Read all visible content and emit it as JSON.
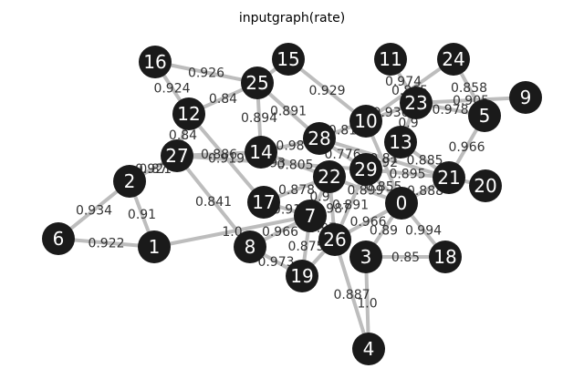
{
  "title": "inputgraph(rate)",
  "colors": {
    "node": "#1a1a1a",
    "node_text": "#ffffff",
    "edge": "#bdbdbd",
    "edge_label": "#333333"
  },
  "nodes": [
    "16",
    "25",
    "15",
    "11",
    "24",
    "12",
    "23",
    "9",
    "5",
    "10",
    "13",
    "27",
    "14",
    "28",
    "2",
    "29",
    "22",
    "21",
    "20",
    "17",
    "7",
    "0",
    "6",
    "1",
    "8",
    "26",
    "3",
    "18",
    "19",
    "4"
  ],
  "edges": [
    {
      "source": "16",
      "target": "25",
      "label": "0.926"
    },
    {
      "source": "16",
      "target": "12",
      "label": "0.924"
    },
    {
      "source": "25",
      "target": "12",
      "label": "0.84"
    },
    {
      "source": "25",
      "target": "28",
      "label": "0.891"
    },
    {
      "source": "25",
      "target": "15",
      "label": ""
    },
    {
      "source": "25",
      "target": "14",
      "label": "0.894"
    },
    {
      "source": "15",
      "target": "10",
      "label": "0.929"
    },
    {
      "source": "11",
      "target": "23",
      "label": "0.974"
    },
    {
      "source": "24",
      "target": "10",
      "label": "0.865"
    },
    {
      "source": "24",
      "target": "5",
      "label": "0.858"
    },
    {
      "source": "23",
      "target": "9",
      "label": "0.905"
    },
    {
      "source": "23",
      "target": "5",
      "label": "0.978"
    },
    {
      "source": "23",
      "target": "13",
      "label": "0.9"
    },
    {
      "source": "23",
      "target": "10",
      "label": "0.936"
    },
    {
      "source": "5",
      "target": "21",
      "label": "0.966"
    },
    {
      "source": "13",
      "target": "21",
      "label": "0.885"
    },
    {
      "source": "12",
      "target": "27",
      "label": "0.84"
    },
    {
      "source": "12",
      "target": "17",
      "label": "0.919"
    },
    {
      "source": "27",
      "target": "2",
      "label": "0.87"
    },
    {
      "source": "27",
      "target": "14",
      "label": "0.886"
    },
    {
      "source": "2",
      "target": "27",
      "label": "0.921"
    },
    {
      "source": "27",
      "target": "29",
      "label": "0.93"
    },
    {
      "source": "27",
      "target": "8",
      "label": "0.841"
    },
    {
      "source": "14",
      "target": "22",
      "label": "0.805"
    },
    {
      "source": "14",
      "target": "28",
      "label": "0.98"
    },
    {
      "source": "28",
      "target": "10",
      "label": "0.81"
    },
    {
      "source": "28",
      "target": "29",
      "label": "0.776"
    },
    {
      "source": "28",
      "target": "21",
      "label": "0.81"
    },
    {
      "source": "2",
      "target": "6",
      "label": "0.934"
    },
    {
      "source": "2",
      "target": "1",
      "label": "0.91"
    },
    {
      "source": "6",
      "target": "1",
      "label": "0.922"
    },
    {
      "source": "1",
      "target": "7",
      "label": "1.0"
    },
    {
      "source": "17",
      "target": "22",
      "label": "0.878"
    },
    {
      "source": "17",
      "target": "7",
      "label": "0.91"
    },
    {
      "source": "22",
      "target": "7",
      "label": "0.9"
    },
    {
      "source": "22",
      "target": "0",
      "label": "0.899"
    },
    {
      "source": "22",
      "target": "26",
      "label": "0.987"
    },
    {
      "source": "29",
      "target": "0",
      "label": "0.855"
    },
    {
      "source": "29",
      "target": "21",
      "label": "0.895"
    },
    {
      "source": "29",
      "target": "26",
      "label": "0.891"
    },
    {
      "source": "0",
      "target": "21",
      "label": "0.888"
    },
    {
      "source": "0",
      "target": "18",
      "label": "0.994"
    },
    {
      "source": "0",
      "target": "3",
      "label": "0.89"
    },
    {
      "source": "0",
      "target": "26",
      "label": "0.966"
    },
    {
      "source": "21",
      "target": "20",
      "label": ""
    },
    {
      "source": "7",
      "target": "8",
      "label": "0.966"
    },
    {
      "source": "7",
      "target": "19",
      "label": "0.875"
    },
    {
      "source": "7",
      "target": "26",
      "label": "0.97"
    },
    {
      "source": "8",
      "target": "19",
      "label": "0.973"
    },
    {
      "source": "26",
      "target": "19",
      "label": ""
    },
    {
      "source": "26",
      "target": "4",
      "label": "0.887"
    },
    {
      "source": "3",
      "target": "4",
      "label": "1.0"
    },
    {
      "source": "3",
      "target": "18",
      "label": "0.85"
    },
    {
      "source": "10",
      "target": "0",
      "label": "0.92"
    }
  ]
}
